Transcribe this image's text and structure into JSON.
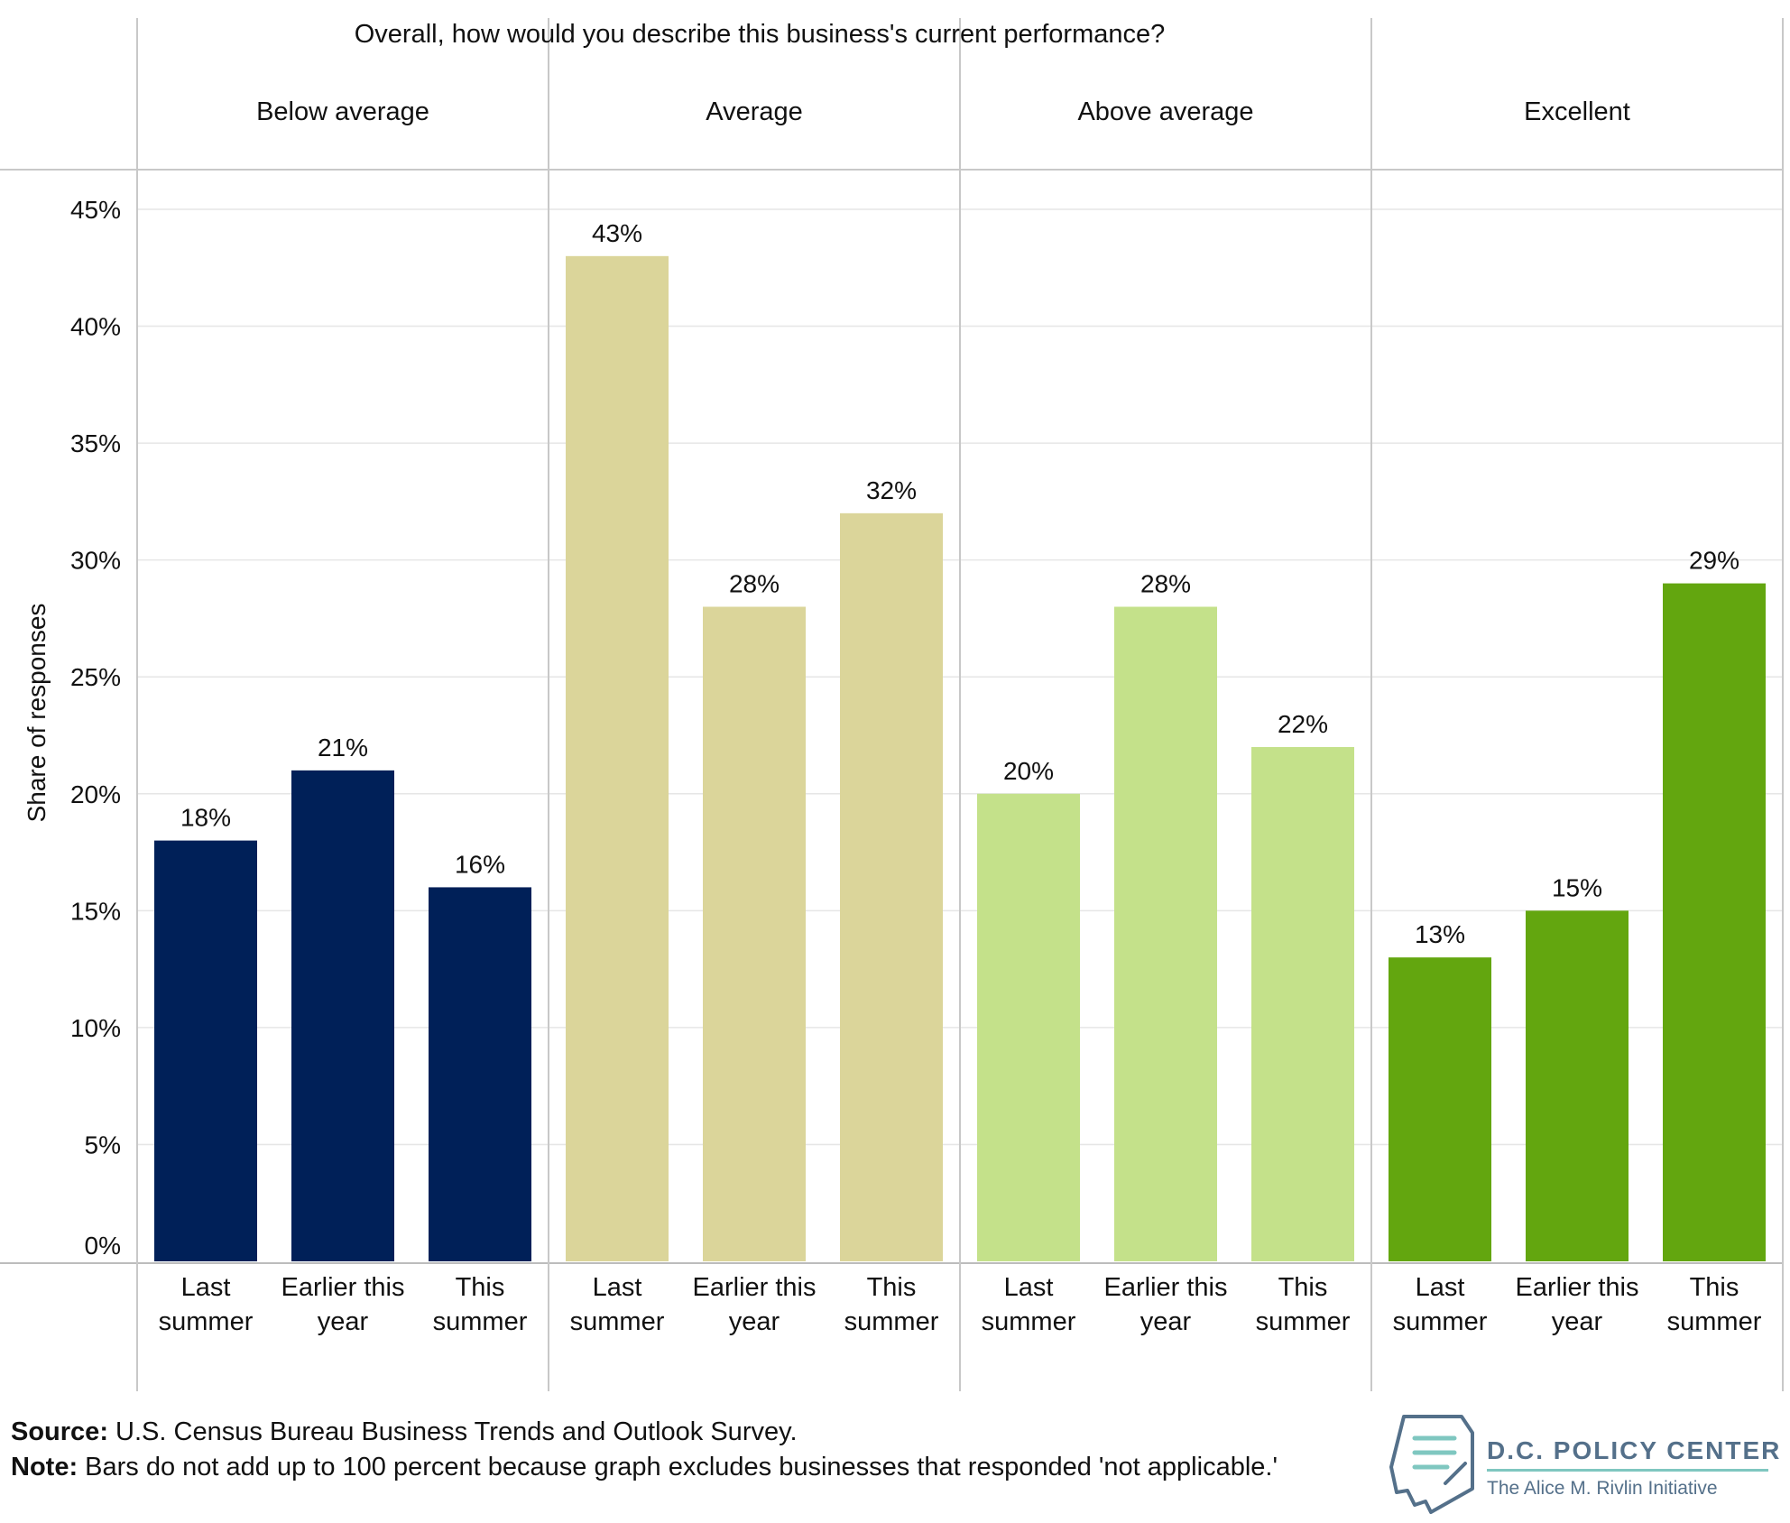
{
  "chart_data": {
    "type": "bar",
    "title": "Overall, how would you describe this business's current performance?",
    "ylabel": "Share of responses",
    "ylim": [
      0,
      45
    ],
    "yticks": [
      "0%",
      "5%",
      "10%",
      "15%",
      "20%",
      "25%",
      "30%",
      "35%",
      "40%",
      "45%"
    ],
    "ytick_values": [
      0,
      5,
      10,
      15,
      20,
      25,
      30,
      35,
      40,
      45
    ],
    "grid": true,
    "categories": [
      [
        "Last",
        "summer"
      ],
      [
        "Earlier this",
        "year"
      ],
      [
        "This",
        "summer"
      ]
    ],
    "panels": [
      {
        "name": "Below average",
        "color": "#002058",
        "values": [
          18,
          21,
          16
        ],
        "labels": [
          "18%",
          "21%",
          "16%"
        ]
      },
      {
        "name": "Average",
        "color": "#dbd59a",
        "values": [
          43,
          28,
          32
        ],
        "labels": [
          "43%",
          "28%",
          "32%"
        ]
      },
      {
        "name": "Above average",
        "color": "#c4e18a",
        "values": [
          20,
          28,
          22
        ],
        "labels": [
          "20%",
          "28%",
          "22%"
        ]
      },
      {
        "name": "Excellent",
        "color": "#63a60f",
        "values": [
          13,
          15,
          29
        ],
        "labels": [
          "13%",
          "15%",
          "29%"
        ]
      }
    ]
  },
  "footer": {
    "source_label": "Source:",
    "source_text": "U.S. Census Bureau Business Trends and Outlook Survey.",
    "note_label": "Note:",
    "note_text": "Bars do not add up to 100 percent because graph excludes businesses that responded 'not applicable.'"
  },
  "logo": {
    "title": "D.C. POLICY CENTER",
    "subtitle": "The Alice M. Rivlin Initiative"
  }
}
